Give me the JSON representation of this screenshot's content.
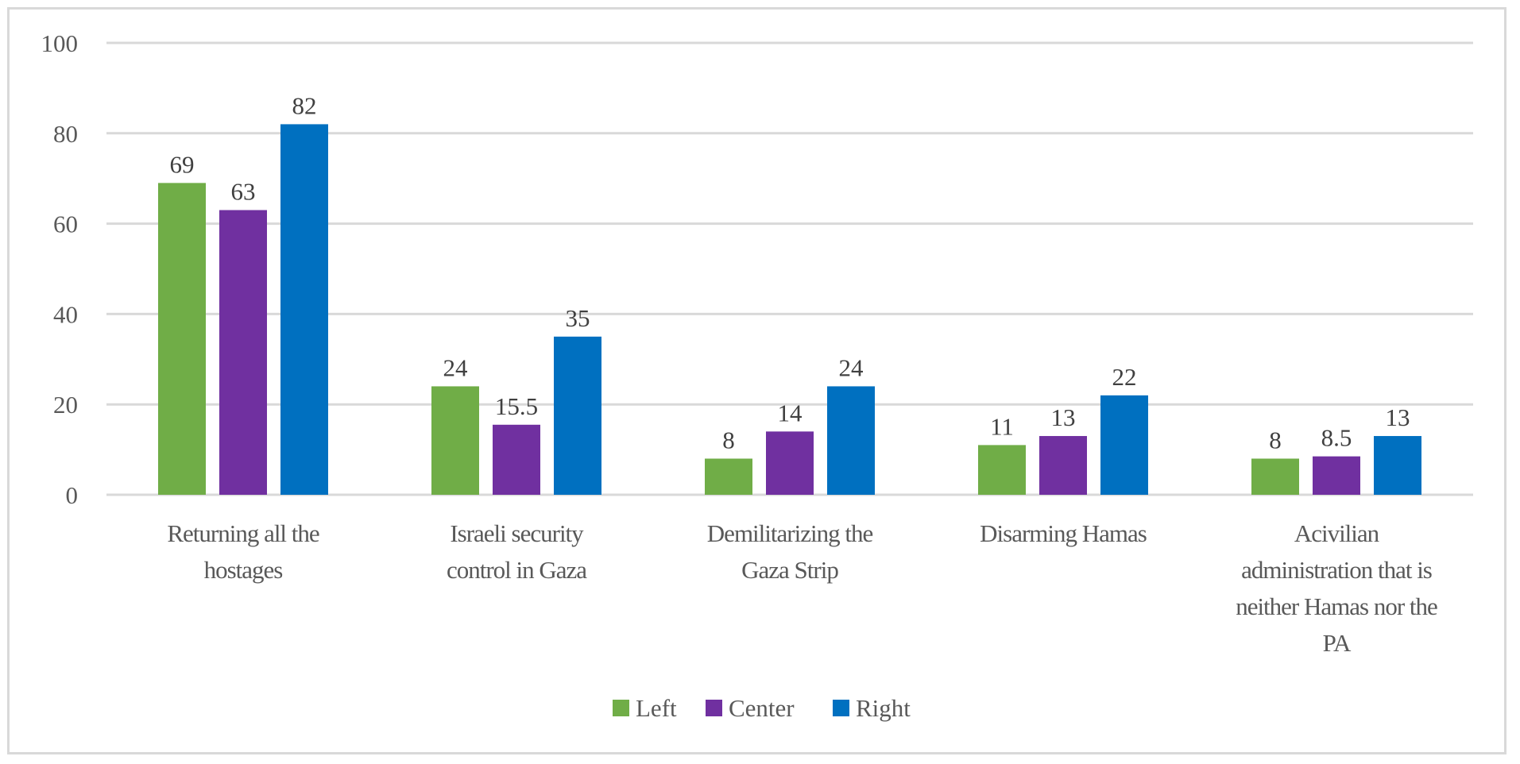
{
  "chart_data": {
    "type": "bar",
    "title": "",
    "xlabel": "",
    "ylabel": "",
    "ylim": [
      0,
      100
    ],
    "yticks": [
      0,
      20,
      40,
      60,
      80,
      100
    ],
    "grid": true,
    "legend_position": "bottom",
    "categories": [
      "Returning all the hostages",
      "Israeli security control in Gaza",
      "Demilitarizing the Gaza Strip",
      "Disarming Hamas",
      "Acivilian administration that is neither Hamas nor the PA"
    ],
    "category_lines": [
      [
        "Returning all the",
        "hostages"
      ],
      [
        "Israeli security",
        "control in Gaza"
      ],
      [
        "Demilitarizing the",
        "Gaza Strip"
      ],
      [
        "Disarming Hamas"
      ],
      [
        "Acivilian",
        "administration that is",
        "neither Hamas nor the",
        "PA"
      ]
    ],
    "series": [
      {
        "name": "Left",
        "color": "#70AD47",
        "values": [
          69,
          24,
          8,
          11,
          8
        ]
      },
      {
        "name": "Center",
        "color": "#7030A0",
        "values": [
          63,
          15.5,
          14,
          13,
          8.5
        ]
      },
      {
        "name": "Right",
        "color": "#0070C0",
        "values": [
          82,
          35,
          24,
          22,
          13
        ]
      }
    ]
  }
}
